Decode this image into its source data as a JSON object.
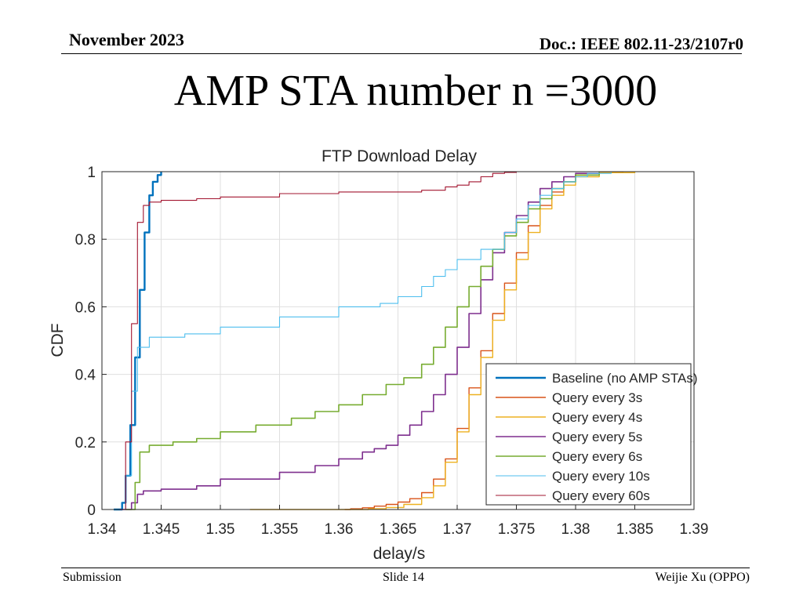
{
  "slide": {
    "date": "November 2023",
    "doc_id": "Doc.: IEEE 802.11-23/2107r0",
    "title": "AMP STA number n =3000",
    "footer_left": "Submission",
    "footer_center": "Slide 14",
    "footer_right": "Weijie Xu (OPPO)"
  },
  "chart_data": {
    "type": "line",
    "title": "FTP Download Delay",
    "xlabel": "delay/s",
    "ylabel": "CDF",
    "xlim": [
      1.34,
      1.39
    ],
    "ylim": [
      0,
      1
    ],
    "xticks": [
      1.34,
      1.345,
      1.35,
      1.355,
      1.36,
      1.365,
      1.37,
      1.375,
      1.38,
      1.385,
      1.39
    ],
    "xtick_labels": [
      "1.34",
      "1.345",
      "1.35",
      "1.355",
      "1.36",
      "1.365",
      "1.37",
      "1.375",
      "1.38",
      "1.385",
      "1.39"
    ],
    "yticks": [
      0,
      0.2,
      0.4,
      0.6,
      0.8,
      1
    ],
    "ytick_labels": [
      "0",
      "0.2",
      "0.4",
      "0.6",
      "0.8",
      "1"
    ],
    "grid": true,
    "legend_position": "bottom-right",
    "series": [
      {
        "name": "Baseline (no AMP STAs)",
        "color": "#0072bd",
        "width": 2.4,
        "x": [
          1.341,
          1.3417,
          1.342,
          1.3424,
          1.3428,
          1.3432,
          1.3436,
          1.344,
          1.3443,
          1.3447,
          1.345
        ],
        "y": [
          0,
          0.02,
          0.1,
          0.25,
          0.45,
          0.65,
          0.82,
          0.93,
          0.97,
          0.99,
          1
        ]
      },
      {
        "name": "Query every 3s",
        "color": "#d95319",
        "width": 1.4,
        "x": [
          1.3605,
          1.361,
          1.362,
          1.363,
          1.364,
          1.365,
          1.366,
          1.367,
          1.368,
          1.369,
          1.37,
          1.371,
          1.372,
          1.373,
          1.374,
          1.375,
          1.376,
          1.377,
          1.378,
          1.379,
          1.38,
          1.382,
          1.384
        ],
        "y": [
          0,
          0.002,
          0.005,
          0.01,
          0.015,
          0.022,
          0.032,
          0.05,
          0.09,
          0.15,
          0.24,
          0.36,
          0.47,
          0.58,
          0.67,
          0.76,
          0.84,
          0.9,
          0.94,
          0.97,
          0.99,
          0.997,
          1
        ]
      },
      {
        "name": "Query every 4s",
        "color": "#edb120",
        "width": 1.4,
        "x": [
          1.3525,
          1.355,
          1.36,
          1.3625,
          1.364,
          1.3655,
          1.367,
          1.368,
          1.369,
          1.37,
          1.371,
          1.372,
          1.373,
          1.374,
          1.375,
          1.376,
          1.377,
          1.378,
          1.379,
          1.38,
          1.382,
          1.385
        ],
        "y": [
          0,
          0,
          0,
          0.002,
          0.006,
          0.015,
          0.035,
          0.07,
          0.14,
          0.23,
          0.34,
          0.45,
          0.56,
          0.65,
          0.74,
          0.82,
          0.89,
          0.93,
          0.96,
          0.985,
          0.997,
          1
        ]
      },
      {
        "name": "Query every 5s",
        "color": "#7e2f8e",
        "width": 1.6,
        "x": [
          1.3415,
          1.3425,
          1.343,
          1.3435,
          1.345,
          1.348,
          1.35,
          1.355,
          1.358,
          1.36,
          1.362,
          1.363,
          1.364,
          1.365,
          1.366,
          1.367,
          1.368,
          1.369,
          1.37,
          1.371,
          1.372,
          1.373,
          1.374,
          1.375,
          1.376,
          1.377,
          1.378,
          1.379,
          1.38,
          1.382
        ],
        "y": [
          0,
          0.02,
          0.045,
          0.055,
          0.06,
          0.07,
          0.09,
          0.11,
          0.13,
          0.15,
          0.17,
          0.18,
          0.19,
          0.22,
          0.25,
          0.29,
          0.34,
          0.4,
          0.48,
          0.58,
          0.68,
          0.76,
          0.82,
          0.87,
          0.91,
          0.95,
          0.97,
          0.985,
          0.995,
          1
        ]
      },
      {
        "name": "Query every 6s",
        "color": "#77ac30",
        "width": 1.6,
        "x": [
          1.342,
          1.3428,
          1.3432,
          1.344,
          1.346,
          1.348,
          1.35,
          1.353,
          1.356,
          1.358,
          1.36,
          1.362,
          1.364,
          1.3655,
          1.367,
          1.368,
          1.369,
          1.37,
          1.371,
          1.372,
          1.373,
          1.374,
          1.375,
          1.376,
          1.377,
          1.378,
          1.379,
          1.38,
          1.382
        ],
        "y": [
          0,
          0.08,
          0.17,
          0.19,
          0.2,
          0.21,
          0.23,
          0.25,
          0.27,
          0.29,
          0.31,
          0.34,
          0.37,
          0.39,
          0.43,
          0.48,
          0.54,
          0.6,
          0.66,
          0.72,
          0.77,
          0.81,
          0.85,
          0.89,
          0.92,
          0.95,
          0.97,
          0.99,
          1
        ]
      },
      {
        "name": "Query every 10s",
        "color": "#4dbeee",
        "width": 1.1,
        "x": [
          1.341,
          1.342,
          1.3425,
          1.343,
          1.344,
          1.347,
          1.35,
          1.355,
          1.36,
          1.3635,
          1.365,
          1.367,
          1.368,
          1.369,
          1.37,
          1.372,
          1.374,
          1.375,
          1.376,
          1.377,
          1.378,
          1.379,
          1.38,
          1.381,
          1.383
        ],
        "y": [
          0,
          0.1,
          0.35,
          0.48,
          0.51,
          0.52,
          0.54,
          0.57,
          0.6,
          0.61,
          0.63,
          0.66,
          0.69,
          0.71,
          0.74,
          0.77,
          0.82,
          0.86,
          0.9,
          0.93,
          0.95,
          0.97,
          0.985,
          0.995,
          1
        ]
      },
      {
        "name": "Query every 60s",
        "color": "#a2142f",
        "width": 1.1,
        "x": [
          1.341,
          1.342,
          1.3425,
          1.343,
          1.3435,
          1.344,
          1.345,
          1.348,
          1.35,
          1.355,
          1.36,
          1.365,
          1.367,
          1.369,
          1.37,
          1.371,
          1.372,
          1.373,
          1.374,
          1.375
        ],
        "y": [
          0,
          0.2,
          0.55,
          0.85,
          0.9,
          0.91,
          0.915,
          0.92,
          0.925,
          0.935,
          0.94,
          0.94,
          0.945,
          0.955,
          0.96,
          0.97,
          0.985,
          0.995,
          0.998,
          1
        ]
      }
    ]
  }
}
